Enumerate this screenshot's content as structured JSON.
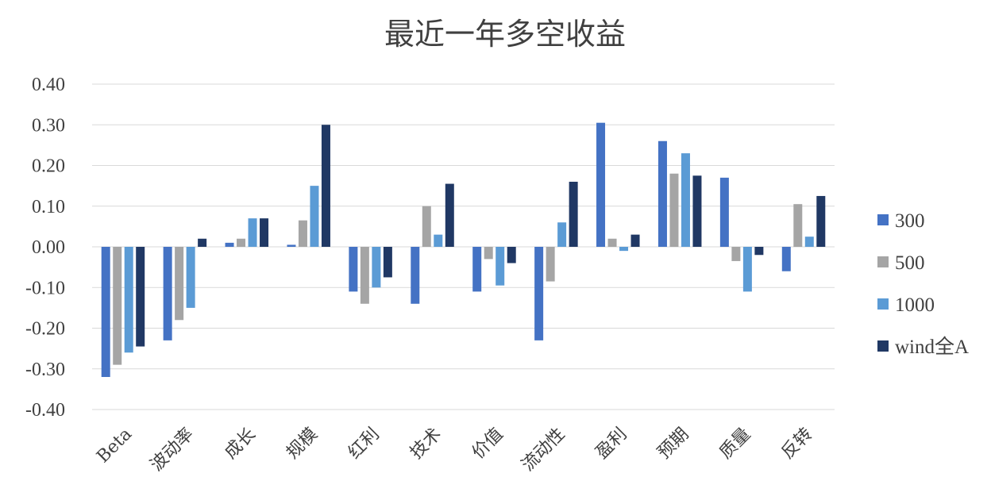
{
  "chart_data": {
    "type": "bar",
    "title": "最近一年多空收益",
    "xlabel": "",
    "ylabel": "",
    "ylim": [
      -0.4,
      0.4
    ],
    "yticks": [
      "0.40",
      "0.30",
      "0.20",
      "0.10",
      "0.00",
      "-0.10",
      "-0.20",
      "-0.30",
      "-0.40"
    ],
    "grid": true,
    "legend_position": "right",
    "categories": [
      "Beta",
      "波动率",
      "成长",
      "规模",
      "红利",
      "技术",
      "价值",
      "流动性",
      "盈利",
      "预期",
      "质量",
      "反转"
    ],
    "series": [
      {
        "name": "300",
        "color": "#4472c4",
        "values": [
          -0.32,
          -0.23,
          0.01,
          0.005,
          -0.11,
          -0.14,
          -0.11,
          -0.23,
          0.305,
          0.26,
          0.17,
          -0.06
        ]
      },
      {
        "name": "500",
        "color": "#a5a5a5",
        "values": [
          -0.29,
          -0.18,
          0.02,
          0.065,
          -0.14,
          0.1,
          -0.03,
          -0.085,
          0.02,
          0.18,
          -0.035,
          0.105
        ]
      },
      {
        "name": "1000",
        "color": "#5b9bd5",
        "values": [
          -0.26,
          -0.15,
          0.07,
          0.15,
          -0.1,
          0.03,
          -0.095,
          0.06,
          -0.01,
          0.23,
          -0.11,
          0.025
        ]
      },
      {
        "name": "wind全A",
        "color": "#203864",
        "values": [
          -0.245,
          0.02,
          0.07,
          0.3,
          -0.075,
          0.155,
          -0.04,
          0.16,
          0.03,
          0.175,
          -0.02,
          0.125
        ]
      }
    ]
  }
}
